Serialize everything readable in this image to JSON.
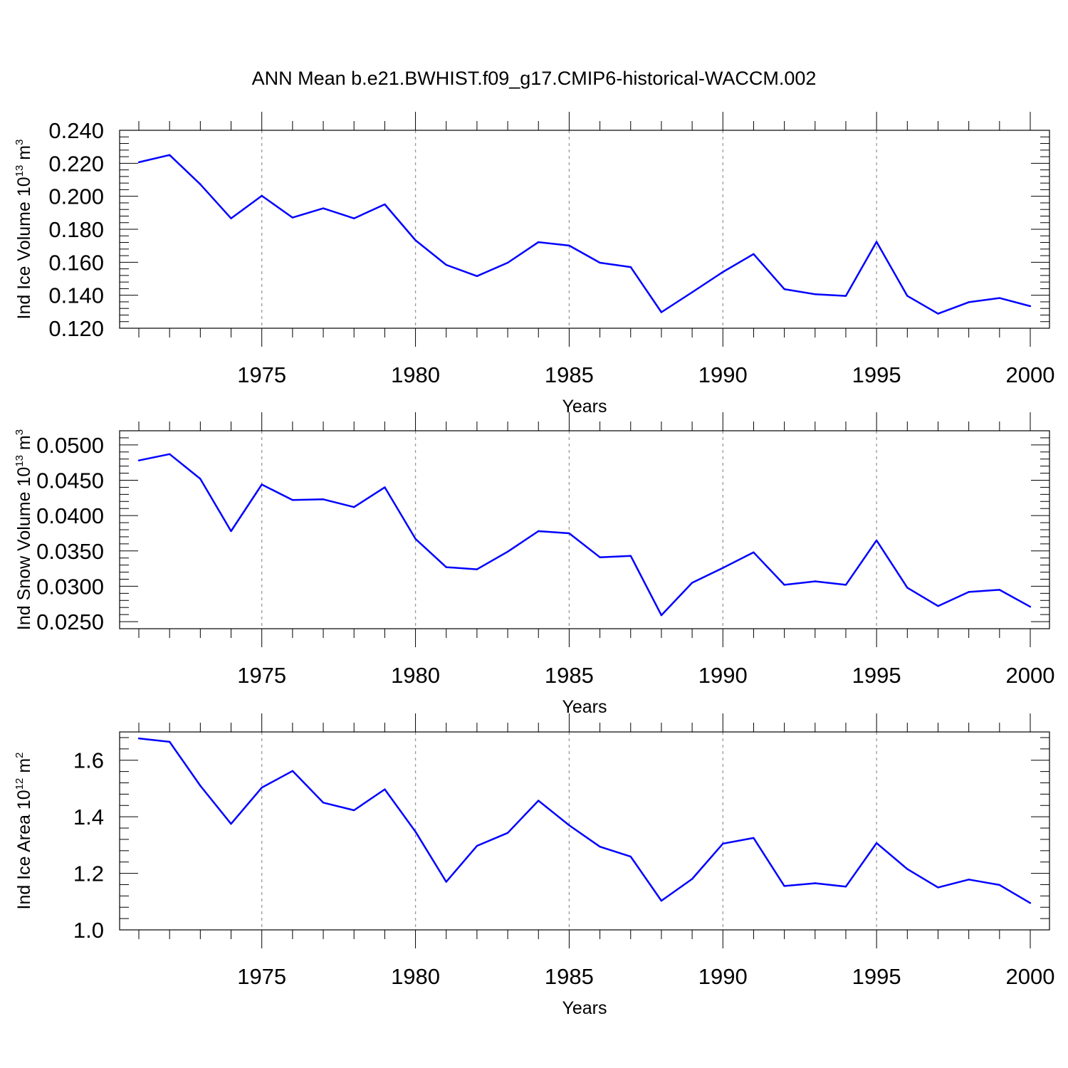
{
  "title": "ANN Mean b.e21.BWHIST.f09_g17.CMIP6-historical-WACCM.002",
  "line_color": "#0000ff",
  "chart_data": [
    {
      "type": "line",
      "ylabel": "Ind Ice Volume",
      "ylabel_unit": "10",
      "ylabel_unit_exp": "13",
      "ylabel_unit_tail": " m",
      "ylabel_unit_tail_exp": "3",
      "xlabel": "Years",
      "xlim": [
        1971,
        2000
      ],
      "ylim": [
        0.12,
        0.24
      ],
      "xticks": [
        1975,
        1980,
        1985,
        1990,
        1995,
        2000
      ],
      "xtick_labels": [
        "1975",
        "1980",
        "1985",
        "1990",
        "1995",
        "2000"
      ],
      "yticks": [
        0.12,
        0.14,
        0.16,
        0.18,
        0.2,
        0.22,
        0.24
      ],
      "ytick_labels": [
        "0.120",
        "0.140",
        "0.160",
        "0.180",
        "0.200",
        "0.220",
        "0.240"
      ],
      "x": [
        1971,
        1972,
        1973,
        1974,
        1975,
        1976,
        1977,
        1978,
        1979,
        1980,
        1981,
        1982,
        1983,
        1984,
        1985,
        1986,
        1987,
        1988,
        1989,
        1990,
        1991,
        1992,
        1993,
        1994,
        1995,
        1996,
        1997,
        1998,
        1999,
        2000
      ],
      "values": [
        0.2206,
        0.225,
        0.2073,
        0.1866,
        0.2003,
        0.1871,
        0.1927,
        0.1866,
        0.1951,
        0.1733,
        0.1584,
        0.1516,
        0.1597,
        0.1722,
        0.1701,
        0.1597,
        0.1571,
        0.1297,
        0.1418,
        0.1541,
        0.165,
        0.1437,
        0.1406,
        0.1396,
        0.1724,
        0.1396,
        0.1288,
        0.1358,
        0.1383,
        0.1334
      ]
    },
    {
      "type": "line",
      "ylabel": "Ind Snow Volume",
      "ylabel_unit": "10",
      "ylabel_unit_exp": "13",
      "ylabel_unit_tail": " m",
      "ylabel_unit_tail_exp": "3",
      "xlabel": "Years",
      "xlim": [
        1971,
        2000
      ],
      "ylim": [
        0.024,
        0.052
      ],
      "xticks": [
        1975,
        1980,
        1985,
        1990,
        1995,
        2000
      ],
      "xtick_labels": [
        "1975",
        "1980",
        "1985",
        "1990",
        "1995",
        "2000"
      ],
      "yticks": [
        0.025,
        0.03,
        0.035,
        0.04,
        0.045,
        0.05
      ],
      "ytick_labels": [
        "0.0250",
        "0.0300",
        "0.0350",
        "0.0400",
        "0.0450",
        "0.0500"
      ],
      "x": [
        1971,
        1972,
        1973,
        1974,
        1975,
        1976,
        1977,
        1978,
        1979,
        1980,
        1981,
        1982,
        1983,
        1984,
        1985,
        1986,
        1987,
        1988,
        1989,
        1990,
        1991,
        1992,
        1993,
        1994,
        1995,
        1996,
        1997,
        1998,
        1999,
        2000
      ],
      "values": [
        0.0478,
        0.0487,
        0.0452,
        0.0378,
        0.0444,
        0.0422,
        0.0423,
        0.0412,
        0.044,
        0.0367,
        0.0327,
        0.0324,
        0.0349,
        0.0378,
        0.0375,
        0.0341,
        0.0343,
        0.0259,
        0.0305,
        0.0326,
        0.0348,
        0.0302,
        0.0307,
        0.0302,
        0.0365,
        0.0298,
        0.0272,
        0.0292,
        0.0295,
        0.0271
      ]
    },
    {
      "type": "line",
      "ylabel": "Ind Ice Area",
      "ylabel_unit": "10",
      "ylabel_unit_exp": "12",
      "ylabel_unit_tail": " m",
      "ylabel_unit_tail_exp": "2",
      "xlabel": "Years",
      "xlim": [
        1971,
        2000
      ],
      "ylim": [
        1.0,
        1.7
      ],
      "xticks": [
        1975,
        1980,
        1985,
        1990,
        1995,
        2000
      ],
      "xtick_labels": [
        "1975",
        "1980",
        "1985",
        "1990",
        "1995",
        "2000"
      ],
      "yticks": [
        1.0,
        1.2,
        1.4,
        1.6
      ],
      "ytick_labels": [
        "1.0",
        "1.2",
        "1.4",
        "1.6"
      ],
      "x": [
        1971,
        1972,
        1973,
        1974,
        1975,
        1976,
        1977,
        1978,
        1979,
        1980,
        1981,
        1982,
        1983,
        1984,
        1985,
        1986,
        1987,
        1988,
        1989,
        1990,
        1991,
        1992,
        1993,
        1994,
        1995,
        1996,
        1997,
        1998,
        1999,
        2000
      ],
      "values": [
        1.677,
        1.665,
        1.51,
        1.375,
        1.503,
        1.562,
        1.45,
        1.423,
        1.497,
        1.347,
        1.17,
        1.297,
        1.343,
        1.457,
        1.37,
        1.294,
        1.259,
        1.103,
        1.18,
        1.305,
        1.325,
        1.155,
        1.165,
        1.153,
        1.307,
        1.215,
        1.15,
        1.178,
        1.159,
        1.095
      ]
    }
  ]
}
